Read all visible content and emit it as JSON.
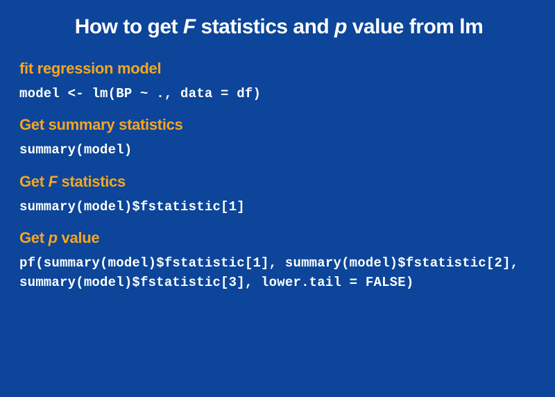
{
  "colors": {
    "background": "#0c4599",
    "heading": "#f5a623",
    "title": "#ffffff",
    "code": "#ffffff"
  },
  "title": {
    "pre": "How to get ",
    "italic1": "F",
    "mid": " statistics and ",
    "italic2": "p",
    "post": " value from lm"
  },
  "sections": [
    {
      "heading_pre": "fit regression model",
      "heading_italic": "",
      "heading_post": "",
      "code": "model <- lm(BP ~ ., data = df)"
    },
    {
      "heading_pre": "Get summary statistics",
      "heading_italic": "",
      "heading_post": "",
      "code": "summary(model)"
    },
    {
      "heading_pre": "Get ",
      "heading_italic": "F",
      "heading_post": " statistics",
      "code": "summary(model)$fstatistic[1]"
    },
    {
      "heading_pre": "Get ",
      "heading_italic": "p",
      "heading_post": " value",
      "code": "pf(summary(model)$fstatistic[1], summary(model)$fstatistic[2], summary(model)$fstatistic[3], lower.tail = FALSE)"
    }
  ],
  "typography": {
    "title_fontsize": 30,
    "title_weight": 800,
    "heading_fontsize": 22,
    "heading_weight": 700,
    "code_fontsize": 19,
    "code_weight": 700,
    "code_family": "Courier New"
  }
}
